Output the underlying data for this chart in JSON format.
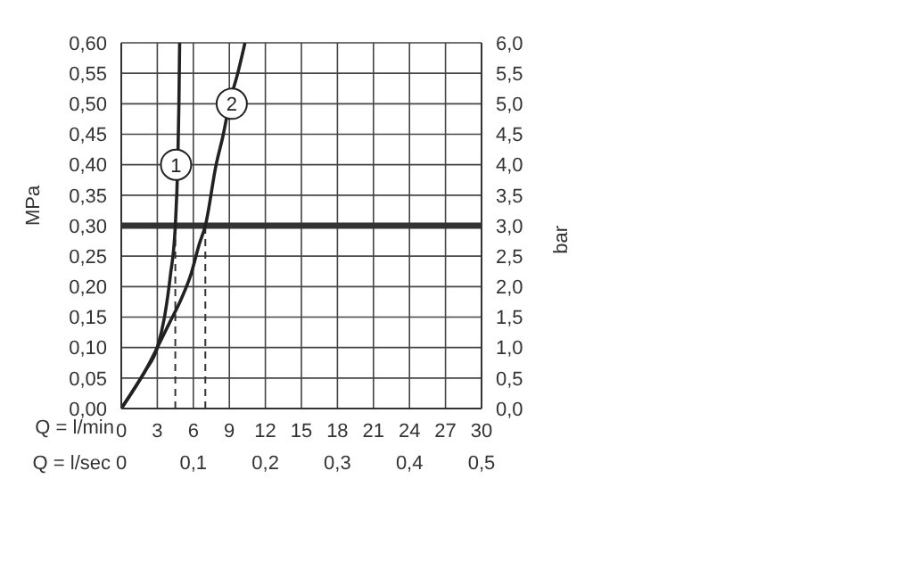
{
  "chart_data": {
    "type": "line",
    "xlabel": "Q = l/min",
    "x2label": "Q = l/sec",
    "ylabel": "MPa",
    "y2label": "bar",
    "xlim": [
      0,
      30
    ],
    "xticks": [
      0,
      3,
      6,
      9,
      12,
      15,
      18,
      21,
      24,
      27,
      30
    ],
    "x2lim": [
      0,
      0.5
    ],
    "x2ticks": [
      0,
      {
        "value": 0.1,
        "label": "0,1"
      },
      {
        "value": 0.2,
        "label": "0,2"
      },
      {
        "value": 0.3,
        "label": "0,3"
      },
      {
        "value": 0.4,
        "label": "0,4"
      },
      {
        "value": 0.5,
        "label": "0,5"
      }
    ],
    "ylim": [
      0,
      0.6
    ],
    "yticks": [
      {
        "value": 0,
        "label": "0,00"
      },
      {
        "value": 0.05,
        "label": "0,05"
      },
      {
        "value": 0.1,
        "label": "0,10"
      },
      {
        "value": 0.15,
        "label": "0,15"
      },
      {
        "value": 0.2,
        "label": "0,20"
      },
      {
        "value": 0.25,
        "label": "0,25"
      },
      {
        "value": 0.3,
        "label": "0,30"
      },
      {
        "value": 0.35,
        "label": "0,35"
      },
      {
        "value": 0.4,
        "label": "0,40"
      },
      {
        "value": 0.45,
        "label": "0,45"
      },
      {
        "value": 0.5,
        "label": "0,50"
      },
      {
        "value": 0.55,
        "label": "0,55"
      },
      {
        "value": 0.6,
        "label": "0,60"
      }
    ],
    "y2lim": [
      0,
      6
    ],
    "y2ticks": [
      {
        "value": 0,
        "label": "0,0"
      },
      {
        "value": 0.5,
        "label": "0,5"
      },
      {
        "value": 1,
        "label": "1,0"
      },
      {
        "value": 1.5,
        "label": "1,5"
      },
      {
        "value": 2,
        "label": "2,0"
      },
      {
        "value": 2.5,
        "label": "2,5"
      },
      {
        "value": 3,
        "label": "3,0"
      },
      {
        "value": 3.5,
        "label": "3,5"
      },
      {
        "value": 4,
        "label": "4,0"
      },
      {
        "value": 4.5,
        "label": "4,5"
      },
      {
        "value": 5,
        "label": "5,0"
      },
      {
        "value": 5.5,
        "label": "5,5"
      },
      {
        "value": 6,
        "label": "6,0"
      }
    ],
    "grid": true,
    "legend": false,
    "marker": "none",
    "line_style": "solid",
    "series": [
      {
        "color": "#222222",
        "x": [
          0,
          1,
          2,
          3,
          3.6,
          4.1,
          4.5,
          4.7,
          4.8,
          4.86
        ],
        "values": [
          0,
          0.03,
          0.062,
          0.1,
          0.15,
          0.22,
          0.3,
          0.4,
          0.5,
          0.6
        ]
      },
      {
        "color": "#222222",
        "x": [
          0,
          1,
          2,
          3,
          4,
          5,
          5.8,
          6.5,
          7,
          7.9,
          8.5,
          9,
          9.7,
          10.3
        ],
        "values": [
          0,
          0.03,
          0.062,
          0.1,
          0.14,
          0.18,
          0.22,
          0.27,
          0.3,
          0.4,
          0.45,
          0.5,
          0.55,
          0.6
        ]
      }
    ],
    "ref_lines": [
      {
        "axis": "y",
        "value": 0.3,
        "color": "#333333",
        "line_style": "solid"
      },
      {
        "axis": "x",
        "value": 4.5,
        "color": "#333333",
        "line_style": "dashed"
      },
      {
        "axis": "x",
        "value": 7,
        "color": "#333333",
        "line_style": "dashed"
      }
    ],
    "annotations": [
      {
        "text": "1",
        "x": 4.56,
        "y": 0.4
      },
      {
        "text": "2",
        "x": 9.2,
        "y": 0.5
      }
    ]
  }
}
